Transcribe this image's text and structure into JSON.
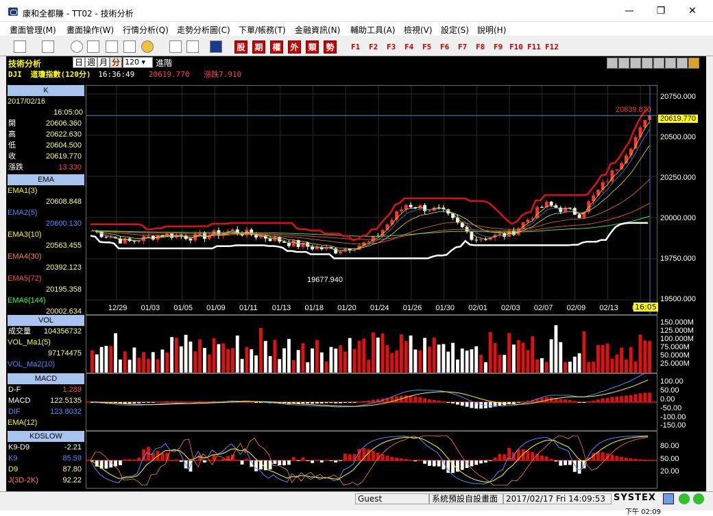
{
  "window": {
    "title": "康和全都賺 - TT02 - 技術分析",
    "min": "—",
    "max": "❐",
    "close": "✕"
  },
  "menu": [
    "畫面管理(M)",
    "畫面操作(W)",
    "行情分析(Q)",
    "走勢分析圖(C)",
    "下單/帳務(T)",
    "金融資訊(N)",
    "輔助工具(A)",
    "檢視(V)",
    "設定(S)",
    "說明(H)"
  ],
  "toolbar": {
    "red_buttons": [
      "股",
      "期",
      "權",
      "外",
      "類",
      "勢"
    ],
    "fkeys": [
      "F1",
      "F2",
      "F3",
      "F4",
      "F5",
      "F6",
      "F7",
      "F8",
      "F9",
      "F10",
      "F11",
      "F12"
    ]
  },
  "header": {
    "label": "技術分析",
    "timeframes": [
      "日",
      "週",
      "月",
      "分"
    ],
    "selected_timeframe": "分",
    "count": "120",
    "advanced": "進階",
    "symbol": "DJI",
    "name": "道瓊指數(120分)",
    "time": "16:36:49",
    "price": "20619.770",
    "change_label": "漲跌",
    "change": "7.910"
  },
  "kpanel": {
    "title": "K",
    "date": "2017/02/16",
    "time": "16:05:00",
    "rows": [
      {
        "label": "開",
        "value": "20606.360"
      },
      {
        "label": "高",
        "value": "20622.630"
      },
      {
        "label": "低",
        "value": "20604.500"
      },
      {
        "label": "收",
        "value": "20619.770"
      },
      {
        "label": "漲跌",
        "value": "13.330"
      }
    ]
  },
  "ema": {
    "title": "EMA",
    "rows": [
      {
        "label": "EMA1(3)",
        "value": "20608.848",
        "color": "#ffff00"
      },
      {
        "label": "EMA2(5)",
        "value": "20600.130",
        "color": "#4a8cff"
      },
      {
        "label": "EMA3(10)",
        "value": "20563.455",
        "color": "#ffff00"
      },
      {
        "label": "EMA4(30)",
        "value": "20392.123",
        "color": "#ff8040"
      },
      {
        "label": "EMA5(72)",
        "value": "20195.358",
        "color": "#ff5050"
      },
      {
        "label": "EMA6(144)",
        "value": "20002.634",
        "color": "#40ff40"
      }
    ]
  },
  "vol": {
    "title": "VOL",
    "rows": [
      {
        "label": "成交量",
        "value": "104356732"
      },
      {
        "label": "VOL_Ma1(5)",
        "value": ""
      },
      {
        "label": "",
        "value": "97174475"
      },
      {
        "label": "VOL_Ma2(10)",
        "value": ""
      }
    ],
    "axis": [
      "150.000M",
      "125.000M",
      "100.000M",
      "75.000M",
      "50.000M",
      "25.000M"
    ]
  },
  "macd": {
    "title": "MACD",
    "rows": [
      {
        "label": "D-F",
        "value": "1.289"
      },
      {
        "label": "MACD",
        "value": "122.5135"
      },
      {
        "label": "DIF",
        "value": "123.8032"
      },
      {
        "label": "EMA(12)",
        "value": ""
      }
    ],
    "axis": [
      "100.00",
      "50.00",
      "0.00",
      "-50.00",
      "-100.00",
      "-150.00"
    ]
  },
  "kd": {
    "title": "KDSLOW",
    "rows": [
      {
        "label": "K9-D9",
        "value": "-2.21"
      },
      {
        "label": "K9",
        "value": "85.59"
      },
      {
        "label": "D9",
        "value": "87.80"
      },
      {
        "label": "J(3D-2K)",
        "value": "92.22"
      }
    ],
    "axis": [
      "80.00",
      "50.00",
      "20.00"
    ]
  },
  "price_axis": [
    "20750.000",
    "20500.000",
    "20250.000",
    "20000.000",
    "19750.000",
    "19500.000"
  ],
  "price_tag": "20619.770",
  "time_tag": "16:05",
  "dates": [
    "12/29",
    "01/03",
    "01/05",
    "01/09",
    "01/11",
    "01/13",
    "01/18",
    "01/20",
    "01/24",
    "01/26",
    "01/30",
    "02/01",
    "02/03",
    "02/07",
    "02/09",
    "02/13",
    "02/15"
  ],
  "annotations": {
    "high": "20639.870",
    "low": "19677.940"
  },
  "chart_data": {
    "type": "candlestick",
    "title": "道瓊指數(120分)",
    "x_categories": [
      "12/29",
      "01/03",
      "01/05",
      "01/09",
      "01/11",
      "01/13",
      "01/18",
      "01/20",
      "01/24",
      "01/26",
      "01/30",
      "02/01",
      "02/03",
      "02/07",
      "02/09",
      "02/13",
      "02/15"
    ],
    "ylim": [
      19500,
      20750
    ],
    "close_trend": [
      19920,
      19850,
      19900,
      19880,
      19920,
      19880,
      19830,
      19800,
      19850,
      20080,
      20040,
      19870,
      19900,
      20080,
      20020,
      20290,
      20619.77
    ],
    "high_mark": 20639.87,
    "low_mark": 19677.94
  },
  "status": {
    "user": "Guest",
    "layout": "系統預設自設畫面",
    "datetime": "2017/02/17 Fri 14:09:53",
    "brand": "SYSTEX"
  },
  "clock": "下午 02:09"
}
